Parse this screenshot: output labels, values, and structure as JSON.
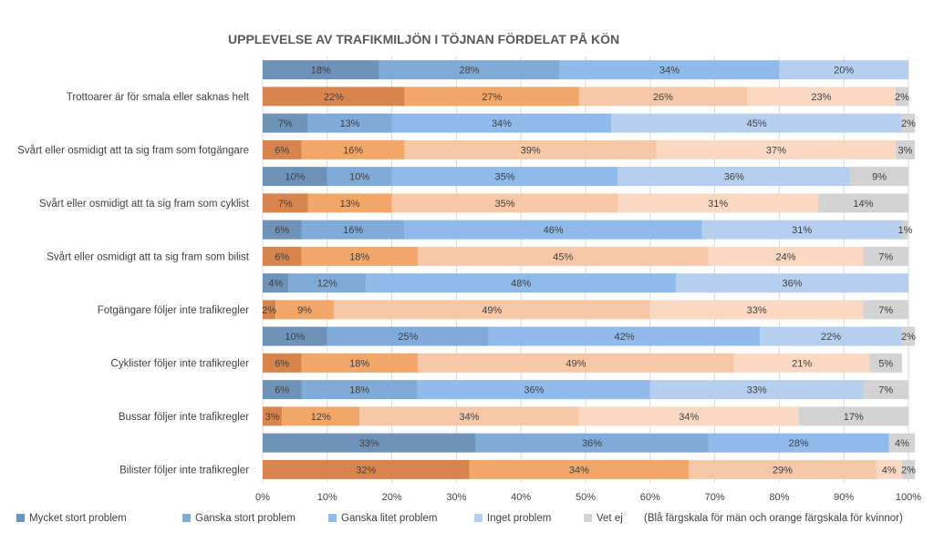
{
  "chart_data": {
    "type": "bar",
    "orientation": "horizontal",
    "stacked": "percent",
    "title": "UPPLEVELSE AV TRAFIKMILJÖN I TÖJNAN FÖRDELAT PÅ KÖN",
    "xlim": [
      0,
      100
    ],
    "x_ticks": [
      "0%",
      "10%",
      "20%",
      "30%",
      "40%",
      "50%",
      "60%",
      "70%",
      "80%",
      "90%",
      "100%"
    ],
    "grid": true,
    "legend_position": "bottom",
    "legend": [
      "Mycket stort problem",
      "Ganska stort problem",
      "Ganska litet problem",
      "Inget problem",
      "Vet ej"
    ],
    "legend_note": "(Blå färgskala för män och orange färgskala för kvinnor)",
    "categories": [
      "Trottoarer är för smala eller saknas helt",
      "Svårt eller osmidigt att ta sig fram som fotgängare",
      "Svårt eller osmidigt att ta sig fram som cyklist",
      "Svårt eller osmidigt att ta sig fram som bilist",
      "Fotgängare följer inte trafikregler",
      "Cyklister följer inte trafikregler",
      "Bussar följer inte trafikregler",
      "Bilister följer inte trafikregler"
    ],
    "groups": [
      "Män",
      "Kvinnor"
    ],
    "series": [
      {
        "name": "Mycket stort problem",
        "men": [
          18,
          7,
          10,
          6,
          4,
          10,
          6,
          33
        ],
        "women": [
          22,
          6,
          7,
          6,
          2,
          6,
          3,
          32
        ]
      },
      {
        "name": "Ganska stort problem",
        "men": [
          28,
          13,
          10,
          16,
          12,
          25,
          18,
          36
        ],
        "women": [
          27,
          16,
          13,
          18,
          9,
          18,
          12,
          34
        ]
      },
      {
        "name": "Ganska litet problem",
        "men": [
          34,
          34,
          35,
          46,
          48,
          42,
          36,
          28
        ],
        "women": [
          26,
          39,
          35,
          45,
          49,
          49,
          34,
          29
        ]
      },
      {
        "name": "Inget problem",
        "men": [
          20,
          45,
          36,
          31,
          36,
          22,
          33,
          0
        ],
        "women": [
          23,
          37,
          31,
          24,
          33,
          21,
          34,
          4
        ]
      },
      {
        "name": "Vet ej",
        "men": [
          0,
          2,
          9,
          1,
          0,
          2,
          7,
          4
        ],
        "women": [
          2,
          3,
          14,
          7,
          7,
          5,
          17,
          2
        ]
      }
    ],
    "colors": {
      "men": [
        "#6f92b8",
        "#80abd8",
        "#8fbae9",
        "#b7cfee",
        "#d3d3d3"
      ],
      "women": [
        "#d8854d",
        "#f2a769",
        "#f6c8a8",
        "#fad9c4",
        "#d3d3d3"
      ],
      "grid": "#d9d9d9",
      "text": "#404040",
      "title": "#595959"
    }
  }
}
